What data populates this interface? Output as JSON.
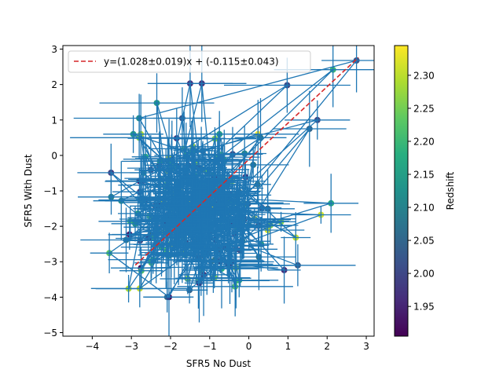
{
  "chart_data": {
    "type": "scatter",
    "xlabel": "SFR5 No Dust",
    "ylabel": "SFR5 With Dust",
    "xlim": [
      -4.75,
      3.2
    ],
    "ylim": [
      -5.1,
      3.1
    ],
    "x_ticks": [
      -4,
      -3,
      -2,
      -1,
      0,
      1,
      2,
      3
    ],
    "y_ticks": [
      -5,
      -4,
      -3,
      -2,
      -1,
      0,
      1,
      2,
      3
    ],
    "x_tick_labels": [
      "−4",
      "−3",
      "−2",
      "−1",
      "0",
      "1",
      "2",
      "3"
    ],
    "y_tick_labels": [
      "−5",
      "−4",
      "−3",
      "−2",
      "−1",
      "0",
      "1",
      "2",
      "3"
    ],
    "grid": false,
    "legend_position": "upper-left",
    "fit": {
      "label": "y=(1.028±0.019)x + (-0.115±0.043)",
      "slope": 1.028,
      "intercept": -0.115,
      "color": "#d62728",
      "x_range": [
        -2.9,
        2.8
      ]
    },
    "connecting_line_color": "#1f77b4",
    "errorbar_color": "#1f77b4",
    "colorbar": {
      "label": "Redshift",
      "cmap": "viridis",
      "range": [
        1.905,
        2.345
      ],
      "ticks": [
        1.95,
        2.0,
        2.05,
        2.1,
        2.15,
        2.2,
        2.25,
        2.3
      ],
      "tick_labels": [
        "1.95",
        "2.00",
        "2.05",
        "2.10",
        "2.15",
        "2.20",
        "2.25",
        "2.30"
      ]
    },
    "highlighted_points": [
      {
        "x": 2.75,
        "y": 2.68,
        "z": 2.02
      },
      {
        "x": 2.15,
        "y": 2.42,
        "z": 2.2
      },
      {
        "x": -1.5,
        "y": 2.03,
        "z": 1.97
      },
      {
        "x": -1.2,
        "y": 2.03,
        "z": 1.97
      },
      {
        "x": 0.98,
        "y": 1.98,
        "z": 2.0
      },
      {
        "x": -2.35,
        "y": 1.48,
        "z": 2.14
      },
      {
        "x": -2.8,
        "y": 1.05,
        "z": 2.12
      },
      {
        "x": -1.7,
        "y": 1.05,
        "z": 2.02
      },
      {
        "x": 1.75,
        "y": 1.0,
        "z": 2.0
      },
      {
        "x": 2.1,
        "y": -1.35,
        "z": 2.17
      },
      {
        "x": 1.25,
        "y": -3.1,
        "z": 2.03
      },
      {
        "x": -0.35,
        "y": -3.7,
        "z": 2.22
      },
      {
        "x": -2.8,
        "y": 0.5,
        "z": 2.25
      },
      {
        "x": 1.55,
        "y": 0.75,
        "z": 2.05
      },
      {
        "x": 0.3,
        "y": 0.5,
        "z": 2.08
      }
    ],
    "cluster": {
      "center_x": -1.3,
      "center_y": -1.55,
      "spread_x": 0.9,
      "spread_y": 1.05,
      "count": 300,
      "x_error_typical": 0.9,
      "y_error_typical": 0.8
    }
  }
}
